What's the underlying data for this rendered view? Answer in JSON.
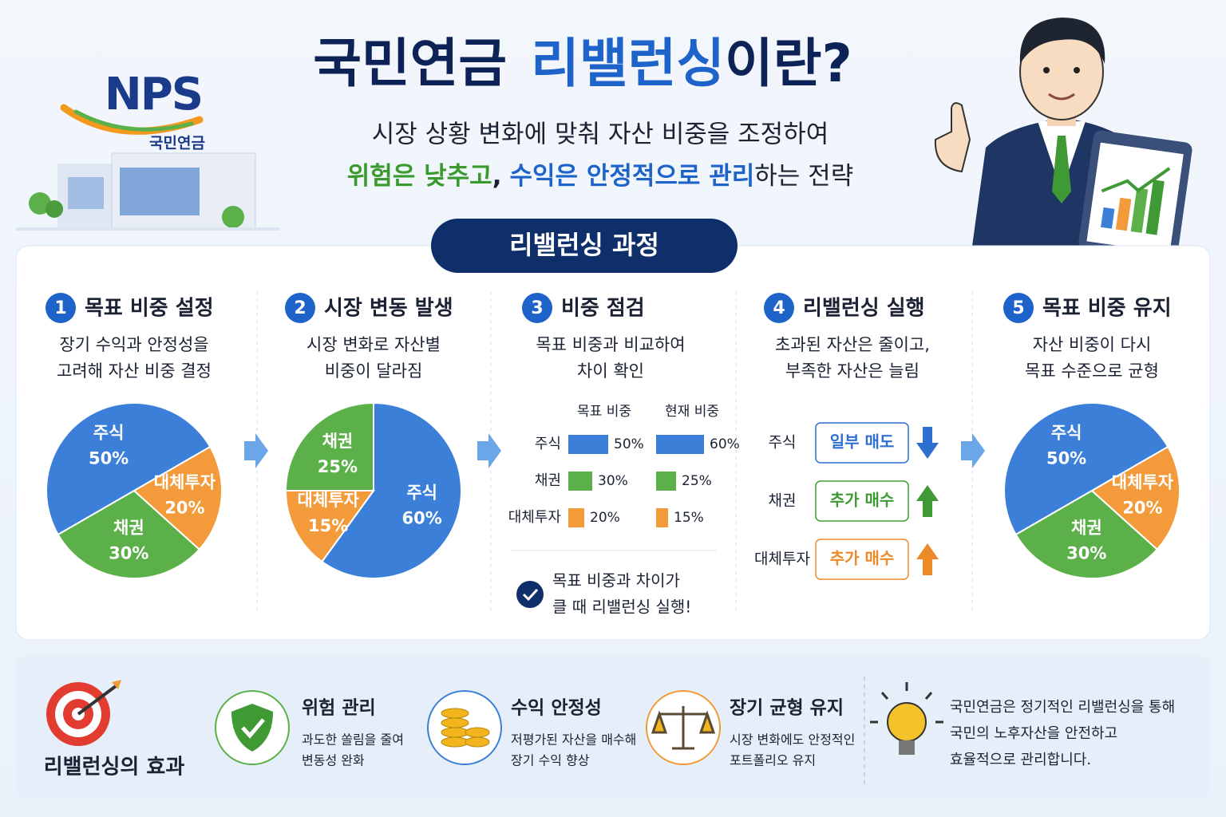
{
  "header": {
    "logo": "NPS",
    "logo_sub": "국민연금",
    "title_part1": "국민연금",
    "title_highlight": "리밸런싱",
    "title_part2": "이란?",
    "subtitle_line1": "시장 상황 변화에 맞춰 자산 비중을 조정하여",
    "subtitle_line2_green": "위험은 낮추고",
    "subtitle_line2_comma": ",",
    "subtitle_line2_blue": "수익은 안정적으로 관리",
    "subtitle_line2_end": "하는 전략"
  },
  "process": {
    "title": "리밸런싱 과정",
    "steps": [
      {
        "number": "1",
        "title": "목표 비중 설정",
        "desc": [
          "장기 수익과 안정성을",
          "고려해 자산 비중 결정"
        ],
        "chart": {
          "type": "pie",
          "categories": [
            "주식",
            "채권",
            "대체투자"
          ],
          "values": [
            50,
            30,
            20
          ],
          "value_labels": [
            "50%",
            "30%",
            "20%"
          ],
          "colors": [
            "#3b7fd9",
            "#5cb04a",
            "#f39a3b"
          ]
        }
      },
      {
        "number": "2",
        "title": "시장 변동 발생",
        "desc": [
          "시장 변화로 자산별",
          "비중이 달라짐"
        ],
        "chart": {
          "type": "pie",
          "categories": [
            "주식",
            "채권",
            "대체투자"
          ],
          "values": [
            60,
            25,
            15
          ],
          "value_labels": [
            "60%",
            "25%",
            "15%"
          ],
          "colors": [
            "#3b7fd9",
            "#5cb04a",
            "#f39a3b"
          ]
        }
      },
      {
        "number": "3",
        "title": "비중 점검",
        "desc": [
          "목표 비중과 비교하여",
          "차이 확인"
        ],
        "chart": {
          "type": "bar",
          "categories": [
            "주식",
            "채권",
            "대체투자"
          ],
          "colors": [
            "#3b7fd9",
            "#5cb04a",
            "#f39a3b"
          ],
          "series": [
            {
              "name": "목표 비중",
              "values": [
                50,
                30,
                20
              ],
              "value_labels": [
                "50%",
                "30%",
                "20%"
              ]
            },
            {
              "name": "현재 비중",
              "values": [
                60,
                25,
                15
              ],
              "value_labels": [
                "60%",
                "25%",
                "15%"
              ]
            }
          ]
        },
        "note": [
          "목표 비중과 차이가",
          "클 때 리밸런싱 실행!"
        ]
      },
      {
        "number": "4",
        "title": "리밸런싱 실행",
        "desc": [
          "초과된 자산은 줄이고,",
          "부족한 자산은 늘림"
        ],
        "actions": [
          {
            "asset": "주식",
            "action": "일부 매도",
            "direction": "down",
            "color": "#2f6fd1"
          },
          {
            "asset": "채권",
            "action": "추가 매수",
            "direction": "up",
            "color": "#3f9a35"
          },
          {
            "asset": "대체투자",
            "action": "추가 매수",
            "direction": "up",
            "color": "#ec8a2a"
          }
        ]
      },
      {
        "number": "5",
        "title": "목표 비중 유지",
        "desc": [
          "자산 비중이 다시",
          "목표 수준으로 균형"
        ],
        "chart": {
          "type": "pie",
          "categories": [
            "주식",
            "채권",
            "대체투자"
          ],
          "values": [
            50,
            30,
            20
          ],
          "value_labels": [
            "50%",
            "30%",
            "20%"
          ],
          "colors": [
            "#3b7fd9",
            "#5cb04a",
            "#f39a3b"
          ]
        }
      }
    ]
  },
  "effects": {
    "title": "리밸런싱의 효과",
    "items": [
      {
        "title": "위험 관리",
        "desc": [
          "과도한 쏠림을 줄여",
          "변동성 완화"
        ]
      },
      {
        "title": "수익 안정성",
        "desc": [
          "저평가된 자산을 매수해",
          "장기 수익 향상"
        ]
      },
      {
        "title": "장기 균형 유지",
        "desc": [
          "시장 변화에도 안정적인",
          "포트폴리오 유지"
        ]
      }
    ],
    "note": [
      "국민연금은 정기적인 리밸런싱을 통해",
      "국민의 노후자산을 안전하고",
      "효율적으로 관리합니다."
    ]
  }
}
